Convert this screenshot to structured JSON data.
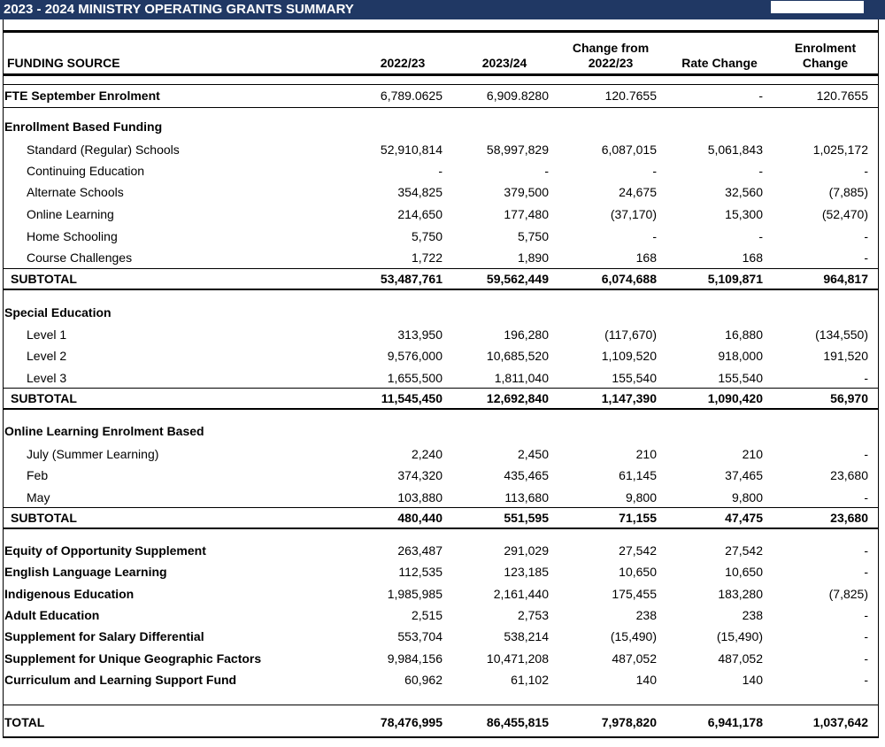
{
  "header": {
    "title": "2023 - 2024 MINISTRY OPERATING GRANTS SUMMARY"
  },
  "table": {
    "columns": [
      "FUNDING SOURCE",
      "2022/23",
      "2023/24",
      "Change from 2022/23",
      "Rate Change",
      "Enrolment Change"
    ],
    "enrolment": {
      "label": "FTE September Enrolment",
      "cells": [
        "6,789.0625",
        "6,909.8280",
        "120.7655",
        "-",
        "120.7655"
      ]
    },
    "sections": [
      {
        "title": "Enrollment Based Funding",
        "rows": [
          {
            "label": "Standard (Regular) Schools",
            "cells": [
              "52,910,814",
              "58,997,829",
              "6,087,015",
              "5,061,843",
              "1,025,172"
            ]
          },
          {
            "label": "Continuing Education",
            "cells": [
              "-",
              "-",
              "-",
              "-",
              "-"
            ]
          },
          {
            "label": "Alternate Schools",
            "cells": [
              "354,825",
              "379,500",
              "24,675",
              "32,560",
              "(7,885)"
            ]
          },
          {
            "label": "Online Learning",
            "cells": [
              "214,650",
              "177,480",
              "(37,170)",
              "15,300",
              "(52,470)"
            ]
          },
          {
            "label": "Home Schooling",
            "cells": [
              "5,750",
              "5,750",
              "-",
              "-",
              "-"
            ]
          },
          {
            "label": "Course Challenges",
            "cells": [
              "1,722",
              "1,890",
              "168",
              "168",
              "-"
            ]
          }
        ],
        "subtotal": {
          "label": "SUBTOTAL",
          "cells": [
            "53,487,761",
            "59,562,449",
            "6,074,688",
            "5,109,871",
            "964,817"
          ]
        }
      },
      {
        "title": "Special Education",
        "rows": [
          {
            "label": "Level 1",
            "cells": [
              "313,950",
              "196,280",
              "(117,670)",
              "16,880",
              "(134,550)"
            ]
          },
          {
            "label": "Level 2",
            "cells": [
              "9,576,000",
              "10,685,520",
              "1,109,520",
              "918,000",
              "191,520"
            ]
          },
          {
            "label": "Level 3",
            "cells": [
              "1,655,500",
              "1,811,040",
              "155,540",
              "155,540",
              "-"
            ]
          }
        ],
        "subtotal": {
          "label": "SUBTOTAL",
          "cells": [
            "11,545,450",
            "12,692,840",
            "1,147,390",
            "1,090,420",
            "56,970"
          ]
        }
      },
      {
        "title": "Online Learning Enrolment Based",
        "rows": [
          {
            "label": "July (Summer Learning)",
            "cells": [
              "2,240",
              "2,450",
              "210",
              "210",
              "-"
            ]
          },
          {
            "label": "Feb",
            "cells": [
              "374,320",
              "435,465",
              "61,145",
              "37,465",
              "23,680"
            ]
          },
          {
            "label": "May",
            "cells": [
              "103,880",
              "113,680",
              "9,800",
              "9,800",
              "-"
            ]
          }
        ],
        "subtotal": {
          "label": "SUBTOTAL",
          "cells": [
            "480,440",
            "551,595",
            "71,155",
            "47,475",
            "23,680"
          ]
        }
      }
    ],
    "other_rows": [
      {
        "label": "Equity of Opportunity Supplement",
        "cells": [
          "263,487",
          "291,029",
          "27,542",
          "27,542",
          "-"
        ]
      },
      {
        "label": "English Language Learning",
        "cells": [
          "112,535",
          "123,185",
          "10,650",
          "10,650",
          "-"
        ]
      },
      {
        "label": "Indigenous Education",
        "cells": [
          "1,985,985",
          "2,161,440",
          "175,455",
          "183,280",
          "(7,825)"
        ]
      },
      {
        "label": "Adult Education",
        "cells": [
          "2,515",
          "2,753",
          "238",
          "238",
          "-"
        ]
      },
      {
        "label": "Supplement for Salary Differential",
        "cells": [
          "553,704",
          "538,214",
          "(15,490)",
          "(15,490)",
          "-"
        ]
      },
      {
        "label": "Supplement for Unique Geographic Factors",
        "cells": [
          "9,984,156",
          "10,471,208",
          "487,052",
          "487,052",
          "-"
        ]
      },
      {
        "label": "Curriculum and Learning Support Fund",
        "cells": [
          "60,962",
          "61,102",
          "140",
          "140",
          "-"
        ]
      }
    ],
    "total": {
      "label": "TOTAL",
      "cells": [
        "78,476,995",
        "86,455,815",
        "7,978,820",
        "6,941,178",
        "1,037,642"
      ]
    }
  }
}
